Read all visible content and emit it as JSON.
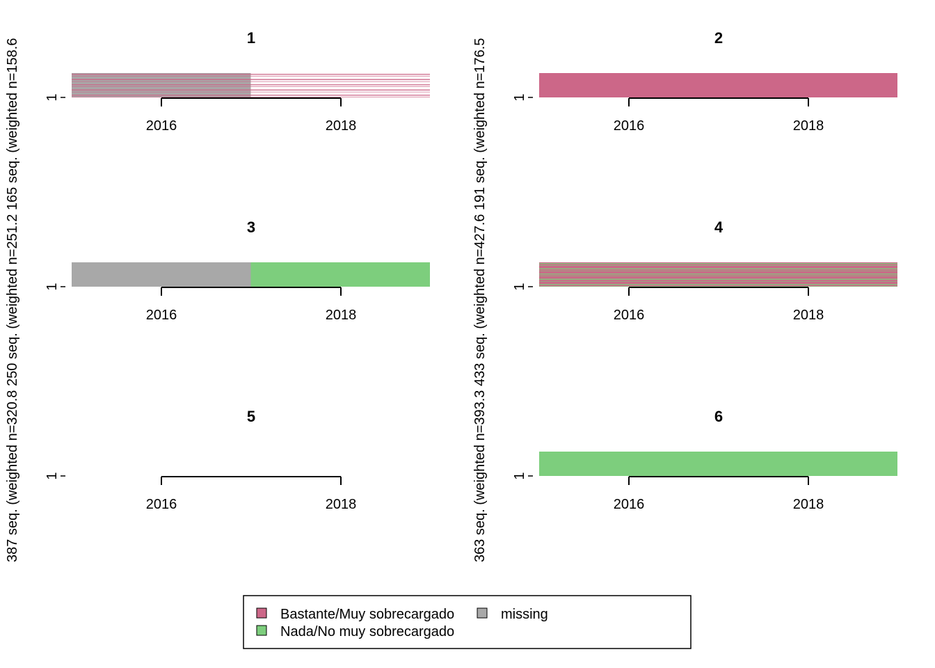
{
  "chart_data": {
    "type": "sequence_index",
    "x_ticks": [
      "2016",
      "2018"
    ],
    "y_tick": "1",
    "side_labels": [
      "387 seq. (weighted n=320.8 250 seq. (weighted n=251.2 165 seq. (weighted n=158.6",
      "363 seq. (weighted n=393.3 433 seq. (weighted n=427.6 191 seq. (weighted n=176.5"
    ],
    "colors": {
      "Bastante/Muy sobrecargado": "#cc6788",
      "Nada/No muy sobrecargado": "#7dce7d",
      "missing": "#a8a8a8"
    },
    "legend": [
      {
        "label": "Bastante/Muy sobrecargado",
        "color": "#cc6788"
      },
      {
        "label": "missing",
        "color": "#a8a8a8"
      },
      {
        "label": "Nada/No muy sobrecargado",
        "color": "#7dce7d"
      }
    ],
    "panels": [
      {
        "title": "1",
        "pattern": "mixed",
        "segments": [
          {
            "state_a": "Bastante/Muy sobrecargado",
            "state_b": "missing"
          },
          {
            "state_a": "Bastante/Muy sobrecargado",
            "state_b": "blank"
          }
        ]
      },
      {
        "title": "2",
        "pattern": "solid",
        "segments": [
          {
            "state": "Bastante/Muy sobrecargado"
          },
          {
            "state": "Bastante/Muy sobrecargado"
          }
        ]
      },
      {
        "title": "3",
        "pattern": "solid",
        "segments": [
          {
            "state": "missing"
          },
          {
            "state": "Nada/No muy sobrecargado"
          }
        ]
      },
      {
        "title": "4",
        "pattern": "mixed",
        "segments": [
          {
            "state_a": "Nada/No muy sobrecargado",
            "state_b": "Bastante/Muy sobrecargado"
          },
          {
            "state_a": "Nada/No muy sobrecargado",
            "state_b": "Bastante/Muy sobrecargado"
          }
        ]
      },
      {
        "title": "5",
        "pattern": "empty",
        "segments": []
      },
      {
        "title": "6",
        "pattern": "solid",
        "segments": [
          {
            "state": "Nada/No muy sobrecargado"
          },
          {
            "state": "Nada/No muy sobrecargado"
          }
        ]
      }
    ]
  }
}
